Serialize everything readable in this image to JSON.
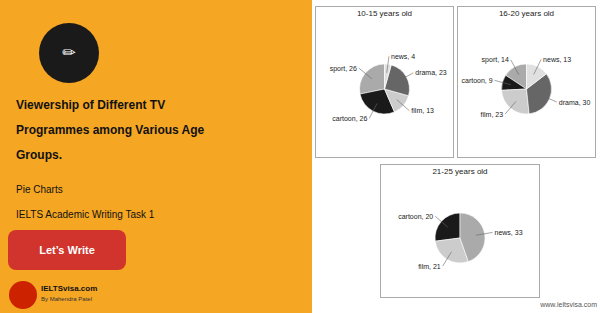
{
  "title": "Viewership of Different TV\nProgrammes among Various Age\nGroups.",
  "subtitle": "Pie Charts",
  "annotations": [
    "IELTS Academic Writing Task 1",
    "Let’s Write",
    "IELTSvisa.com",
    "By Mahendra Patel",
    "www.ieltsvisa.com",
    "✏"
  ],
  "chart_data": [
    {
      "type": "pie",
      "title": "10-15 years old",
      "categories": [
        "sport",
        "cartoon",
        "film",
        "drama",
        "news"
      ],
      "values": [
        26,
        26,
        13,
        23,
        4
      ],
      "value_labels": [
        "sport, 26",
        "cartoon, 26",
        "film, 13",
        "drama, 23",
        "news, 4"
      ],
      "colors": [
        "#aaaaaa",
        "#1a1a1a",
        "#cccccc",
        "#666666",
        "#e0e0e0"
      ],
      "data_labels": true
    },
    {
      "type": "pie",
      "title": "16-20 years old",
      "categories": [
        "sport",
        "cartoon",
        "film",
        "drama",
        "news"
      ],
      "values": [
        14,
        9,
        23,
        30,
        13
      ],
      "value_labels": [
        "sport, 14",
        "cartoon, 9",
        "film, 23",
        "drama, 30",
        "news, 13"
      ],
      "colors": [
        "#aaaaaa",
        "#1a1a1a",
        "#cccccc",
        "#666666",
        "#e0e0e0"
      ],
      "data_labels": true
    },
    {
      "type": "pie",
      "title": "21-25 years old",
      "categories": [
        "cartoon",
        "film",
        "news"
      ],
      "values": [
        20,
        21,
        33
      ],
      "value_labels": [
        "cartoon, 20",
        "film, 21",
        "news, 33"
      ],
      "colors": [
        "#1a1a1a",
        "#cccccc",
        "#aaaaaa"
      ],
      "data_labels": true
    }
  ]
}
